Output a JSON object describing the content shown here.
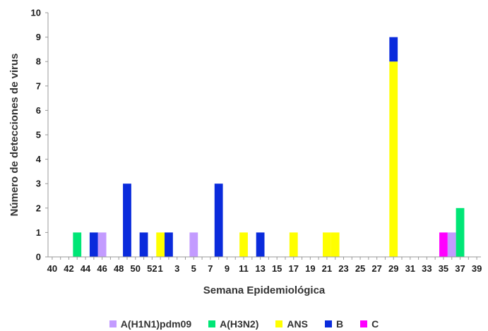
{
  "chart_data": {
    "type": "bar",
    "stacked": true,
    "xlabel": "Semana Epidemiológica",
    "ylabel": "Número de detecciones de virus",
    "ylim": [
      0,
      10
    ],
    "yticks": [
      0,
      1,
      2,
      3,
      4,
      5,
      6,
      7,
      8,
      9,
      10
    ],
    "grid": false,
    "legend_position": "bottom",
    "categories": [
      "40",
      "41",
      "42",
      "43",
      "44",
      "45",
      "46",
      "47",
      "48",
      "49",
      "50",
      "51",
      "52",
      "1",
      "2",
      "3",
      "4",
      "5",
      "6",
      "7",
      "8",
      "9",
      "10",
      "11",
      "12",
      "13",
      "14",
      "15",
      "16",
      "17",
      "18",
      "19",
      "20",
      "21",
      "22",
      "23",
      "24",
      "25",
      "26",
      "27",
      "28",
      "29",
      "30",
      "31",
      "32",
      "33",
      "34",
      "35",
      "36",
      "37",
      "38",
      "39"
    ],
    "xtick_labels": [
      "40",
      "42",
      "44",
      "46",
      "48",
      "50",
      "52",
      "1",
      "3",
      "5",
      "7",
      "9",
      "11",
      "13",
      "15",
      "17",
      "19",
      "21",
      "23",
      "25",
      "27",
      "29",
      "31",
      "33",
      "35",
      "37",
      "39"
    ],
    "series": [
      {
        "name": "A(H1N1)pdm09",
        "color": "#c39bff",
        "values": [
          0,
          0,
          0,
          0,
          0,
          0,
          1,
          0,
          0,
          0,
          0,
          0,
          0,
          0,
          0,
          0,
          0,
          1,
          0,
          0,
          0,
          0,
          0,
          0,
          0,
          0,
          0,
          0,
          0,
          0,
          0,
          0,
          0,
          0,
          0,
          0,
          0,
          0,
          0,
          0,
          0,
          0,
          0,
          0,
          0,
          0,
          0,
          0,
          1,
          0,
          0,
          0
        ]
      },
      {
        "name": "A(H3N2)",
        "color": "#00e676",
        "values": [
          0,
          0,
          0,
          1,
          0,
          0,
          0,
          0,
          0,
          0,
          0,
          0,
          0,
          0,
          0,
          0,
          0,
          0,
          0,
          0,
          0,
          0,
          0,
          0,
          0,
          0,
          0,
          0,
          0,
          0,
          0,
          0,
          0,
          0,
          0,
          0,
          0,
          0,
          0,
          0,
          0,
          0,
          0,
          0,
          0,
          0,
          0,
          0,
          0,
          2,
          0,
          0
        ]
      },
      {
        "name": "ANS",
        "color": "#ffff00",
        "values": [
          0,
          0,
          0,
          0,
          0,
          0,
          0,
          0,
          0,
          0,
          0,
          0,
          0,
          1,
          0,
          0,
          0,
          0,
          0,
          0,
          0,
          0,
          0,
          1,
          0,
          0,
          0,
          0,
          0,
          1,
          0,
          0,
          0,
          1,
          1,
          0,
          0,
          0,
          0,
          0,
          0,
          8,
          0,
          0,
          0,
          0,
          0,
          0,
          0,
          0,
          0,
          0
        ]
      },
      {
        "name": "B",
        "color": "#0a2bdc",
        "values": [
          0,
          0,
          0,
          0,
          0,
          1,
          0,
          0,
          0,
          3,
          0,
          1,
          0,
          0,
          1,
          0,
          0,
          0,
          0,
          0,
          3,
          0,
          0,
          0,
          0,
          1,
          0,
          0,
          0,
          0,
          0,
          0,
          0,
          0,
          0,
          0,
          0,
          0,
          0,
          0,
          0,
          1,
          0,
          0,
          0,
          0,
          0,
          0,
          0,
          0,
          0,
          0
        ]
      },
      {
        "name": "C",
        "color": "#ff00ff",
        "values": [
          0,
          0,
          0,
          0,
          0,
          0,
          0,
          0,
          0,
          0,
          0,
          0,
          0,
          0,
          0,
          0,
          0,
          0,
          0,
          0,
          0,
          0,
          0,
          0,
          0,
          0,
          0,
          0,
          0,
          0,
          0,
          0,
          0,
          0,
          0,
          0,
          0,
          0,
          0,
          0,
          0,
          0,
          0,
          0,
          0,
          0,
          0,
          1,
          0,
          0,
          0,
          0
        ]
      }
    ]
  }
}
